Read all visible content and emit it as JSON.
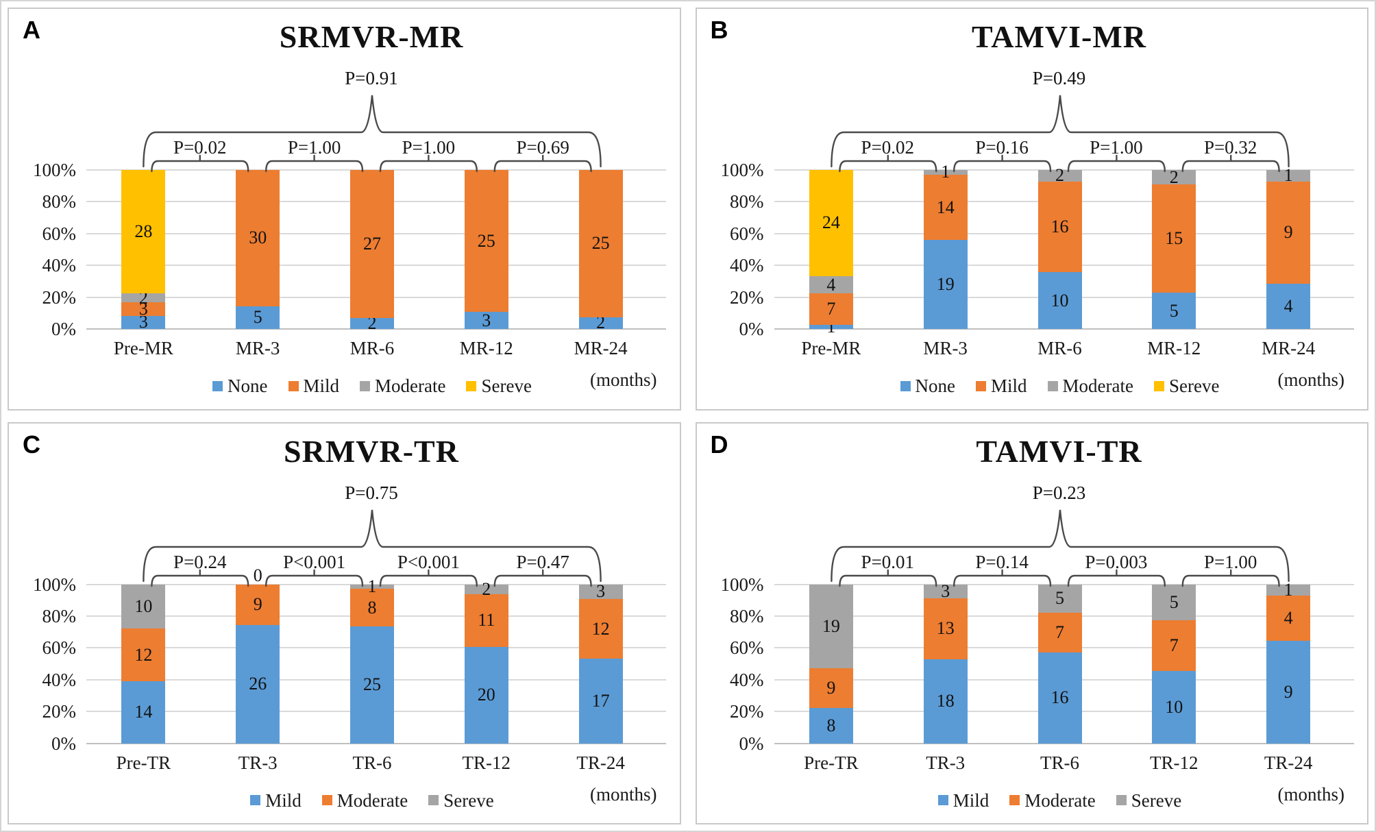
{
  "colors": {
    "blue": "#5B9BD5",
    "orange": "#ED7D31",
    "gray": "#A5A5A5",
    "yellow": "#FFC000",
    "gridline": "#D9D9D9",
    "axis": "#BFBFBF",
    "bracket": "#4a4a4a",
    "panel_border": "#C9C9C9"
  },
  "x_unit_label": "(months)",
  "chart_data": [
    {
      "panel": "A",
      "type": "bar",
      "stacked": true,
      "percent_axis": true,
      "title": "SRMVR-MR",
      "overall_p": "P=0.91",
      "pairwise_p": [
        "P=0.02",
        "P=1.00",
        "P=1.00",
        "P=0.69"
      ],
      "categories": [
        "Pre-MR",
        "MR-3",
        "MR-6",
        "MR-12",
        "MR-24"
      ],
      "series": [
        {
          "name": "None",
          "color": "#5B9BD5",
          "values": [
            3,
            5,
            2,
            3,
            2
          ]
        },
        {
          "name": "Mild",
          "color": "#ED7D31",
          "values": [
            3,
            30,
            27,
            25,
            25
          ]
        },
        {
          "name": "Moderate",
          "color": "#A5A5A5",
          "values": [
            2,
            0,
            0,
            0,
            0
          ]
        },
        {
          "name": "Sereve",
          "color": "#FFC000",
          "values": [
            28,
            0,
            0,
            0,
            0
          ]
        }
      ],
      "y_ticks": [
        "100%",
        "80%",
        "60%",
        "40%",
        "20%",
        "0%"
      ],
      "ylim": [
        0,
        100
      ],
      "grid": true,
      "legend_position": "bottom",
      "x_unit": "(months)"
    },
    {
      "panel": "B",
      "type": "bar",
      "stacked": true,
      "percent_axis": true,
      "title": "TAMVI-MR",
      "overall_p": "P=0.49",
      "pairwise_p": [
        "P=0.02",
        "P=0.16",
        "P=1.00",
        "P=0.32"
      ],
      "categories": [
        "Pre-MR",
        "MR-3",
        "MR-6",
        "MR-12",
        "MR-24"
      ],
      "series": [
        {
          "name": "None",
          "color": "#5B9BD5",
          "values": [
            1,
            19,
            10,
            5,
            4
          ]
        },
        {
          "name": "Mild",
          "color": "#ED7D31",
          "values": [
            7,
            14,
            16,
            15,
            9
          ]
        },
        {
          "name": "Moderate",
          "color": "#A5A5A5",
          "values": [
            4,
            1,
            2,
            2,
            1
          ]
        },
        {
          "name": "Sereve",
          "color": "#FFC000",
          "values": [
            24,
            0,
            0,
            0,
            0
          ]
        }
      ],
      "y_ticks": [
        "100%",
        "80%",
        "60%",
        "40%",
        "20%",
        "0%"
      ],
      "ylim": [
        0,
        100
      ],
      "grid": true,
      "legend_position": "bottom",
      "x_unit": "(months)"
    },
    {
      "panel": "C",
      "type": "bar",
      "stacked": true,
      "percent_axis": true,
      "title": "SRMVR-TR",
      "overall_p": "P=0.75",
      "pairwise_p": [
        "P=0.24",
        "P<0.001",
        "P<0.001",
        "P=0.47"
      ],
      "categories": [
        "Pre-TR",
        "TR-3",
        "TR-6",
        "TR-12",
        "TR-24"
      ],
      "series": [
        {
          "name": "Mild",
          "color": "#5B9BD5",
          "values": [
            14,
            26,
            25,
            20,
            17
          ]
        },
        {
          "name": "Moderate",
          "color": "#ED7D31",
          "values": [
            12,
            9,
            8,
            11,
            12
          ]
        },
        {
          "name": "Sereve",
          "color": "#A5A5A5",
          "values": [
            10,
            0,
            1,
            2,
            3
          ],
          "label_zeros": true
        }
      ],
      "y_ticks": [
        "100%",
        "80%",
        "60%",
        "40%",
        "20%",
        "0%"
      ],
      "ylim": [
        0,
        100
      ],
      "grid": true,
      "legend_position": "bottom",
      "x_unit": "(months)"
    },
    {
      "panel": "D",
      "type": "bar",
      "stacked": true,
      "percent_axis": true,
      "title": "TAMVI-TR",
      "overall_p": "P=0.23",
      "pairwise_p": [
        "P=0.01",
        "P=0.14",
        "P=0.003",
        "P=1.00"
      ],
      "categories": [
        "Pre-TR",
        "TR-3",
        "TR-6",
        "TR-12",
        "TR-24"
      ],
      "series": [
        {
          "name": "Mild",
          "color": "#5B9BD5",
          "values": [
            8,
            18,
            16,
            10,
            9
          ]
        },
        {
          "name": "Moderate",
          "color": "#ED7D31",
          "values": [
            9,
            13,
            7,
            7,
            4
          ]
        },
        {
          "name": "Sereve",
          "color": "#A5A5A5",
          "values": [
            19,
            3,
            5,
            5,
            1
          ]
        }
      ],
      "y_ticks": [
        "100%",
        "80%",
        "60%",
        "40%",
        "20%",
        "0%"
      ],
      "ylim": [
        0,
        100
      ],
      "grid": true,
      "legend_position": "bottom",
      "x_unit": "(months)"
    }
  ]
}
